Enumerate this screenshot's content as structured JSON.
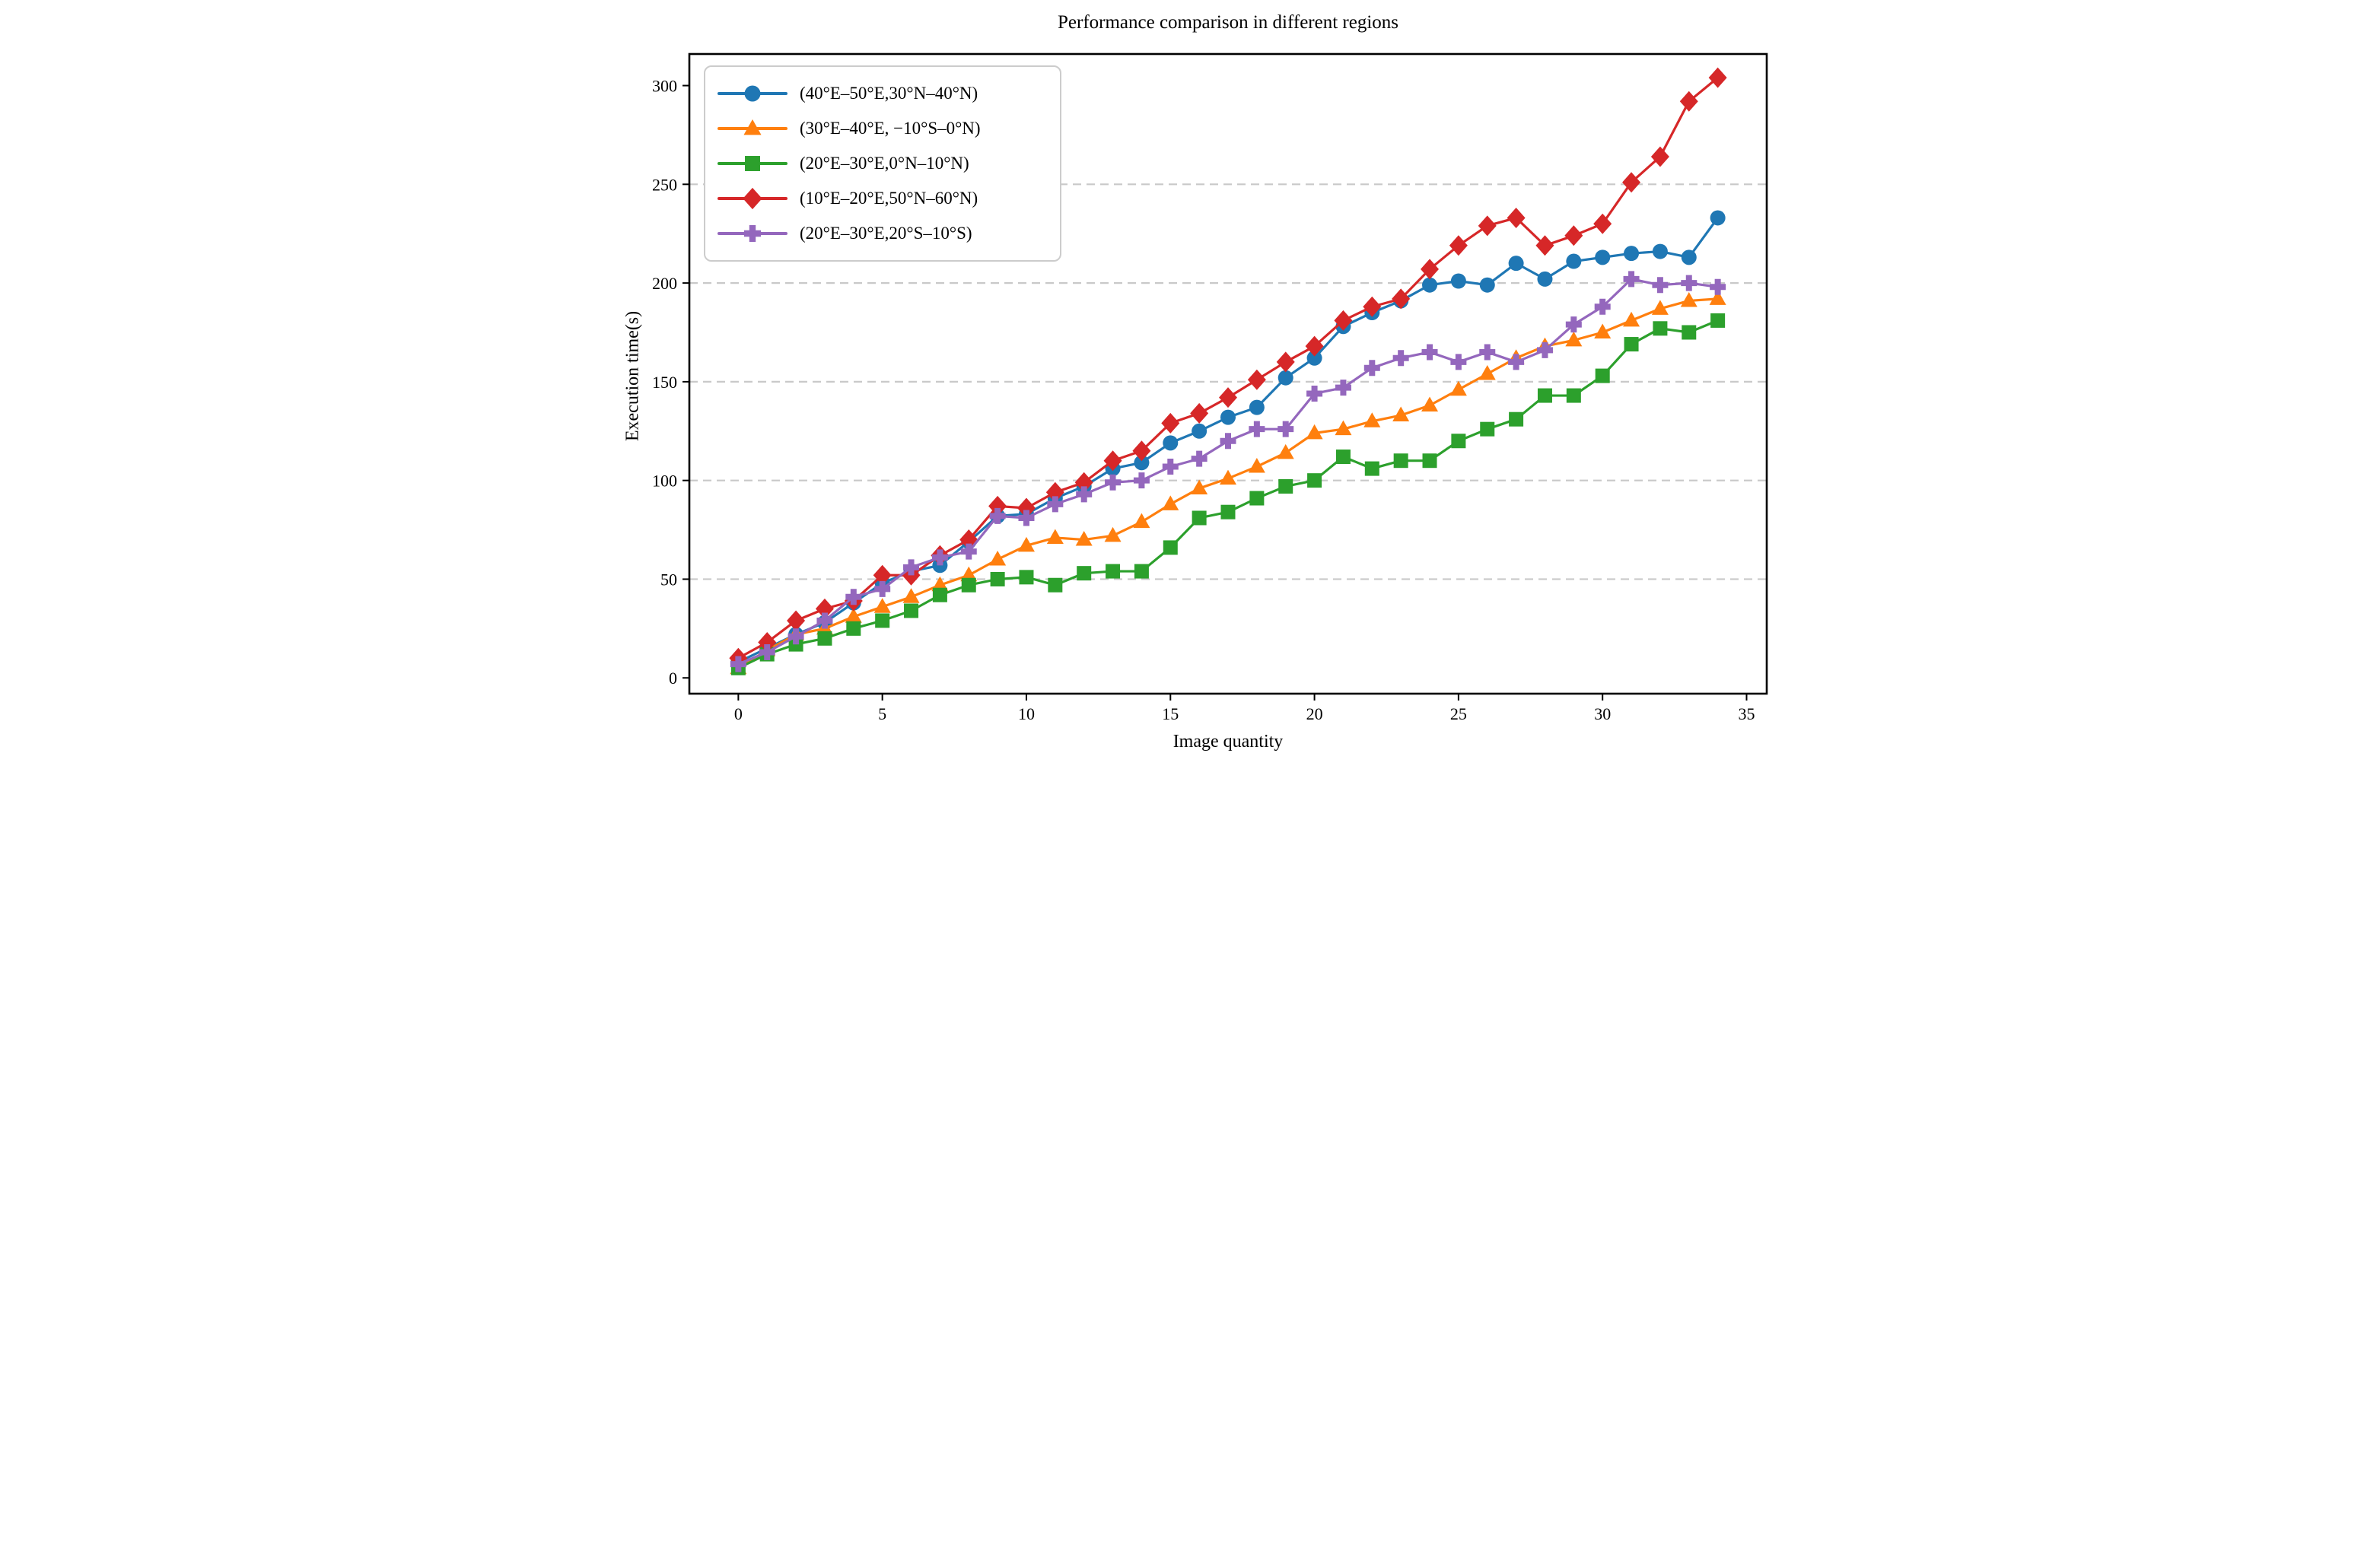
{
  "chart_data": {
    "type": "line",
    "title": "Performance comparison in different regions",
    "xlabel": "Image quantity",
    "ylabel": "Execution time(s)",
    "x": [
      0,
      1,
      2,
      3,
      4,
      5,
      6,
      7,
      8,
      9,
      10,
      11,
      12,
      13,
      14,
      15,
      16,
      17,
      18,
      19,
      20,
      21,
      22,
      23,
      24,
      25,
      26,
      27,
      28,
      29,
      30,
      31,
      32,
      33,
      34
    ],
    "xlim": [
      -1.7,
      35.7
    ],
    "ylim": [
      -8,
      316
    ],
    "xticks": [
      0,
      5,
      10,
      15,
      20,
      25,
      30,
      35
    ],
    "yticks": [
      0,
      50,
      100,
      150,
      200,
      250,
      300
    ],
    "grid": {
      "axis": "y",
      "values": [
        50,
        100,
        150,
        200,
        250
      ],
      "style": "dashed",
      "color": "#c9c9c9"
    },
    "legend_position": "upper left",
    "series": [
      {
        "name": "(40°E–50°E,30°N–40°N)",
        "color": "#1f77b4",
        "marker": "circle",
        "values": [
          8,
          15,
          22,
          28,
          38,
          48,
          54,
          57,
          69,
          82,
          83,
          91,
          97,
          106,
          109,
          119,
          125,
          132,
          137,
          152,
          162,
          178,
          185,
          191,
          199,
          201,
          199,
          210,
          202,
          211,
          213,
          215,
          216,
          213,
          233
        ]
      },
      {
        "name": "(30°E–40°E, −10°S–0°N)",
        "color": "#ff7f0e",
        "marker": "triangle",
        "values": [
          5,
          14,
          22,
          25,
          31,
          36,
          41,
          47,
          52,
          60,
          67,
          71,
          70,
          72,
          79,
          88,
          96,
          101,
          107,
          114,
          124,
          126,
          130,
          133,
          138,
          146,
          154,
          162,
          168,
          171,
          175,
          181,
          187,
          191,
          192
        ]
      },
      {
        "name": "(20°E–30°E,0°N–10°N)",
        "color": "#2ca02c",
        "marker": "square",
        "values": [
          5,
          12,
          17,
          20,
          25,
          29,
          34,
          42,
          47,
          50,
          51,
          47,
          53,
          54,
          54,
          66,
          81,
          84,
          91,
          97,
          100,
          112,
          106,
          110,
          110,
          120,
          126,
          131,
          143,
          143,
          153,
          169,
          177,
          175,
          181
        ]
      },
      {
        "name": "(10°E–20°E,50°N–60°N)",
        "color": "#d62728",
        "marker": "diamond",
        "values": [
          10,
          18,
          29,
          35,
          39,
          52,
          52,
          62,
          70,
          87,
          86,
          94,
          99,
          110,
          115,
          129,
          134,
          142,
          151,
          160,
          168,
          181,
          188,
          192,
          207,
          219,
          229,
          233,
          219,
          224,
          230,
          251,
          264,
          292,
          304
        ]
      },
      {
        "name": "(20°E–30°E,20°S–10°S)",
        "color": "#9467bd",
        "marker": "plus",
        "values": [
          7,
          13,
          21,
          29,
          41,
          45,
          56,
          61,
          64,
          82,
          81,
          88,
          93,
          99,
          100,
          107,
          111,
          120,
          126,
          126,
          144,
          147,
          157,
          162,
          165,
          160,
          165,
          160,
          166,
          179,
          188,
          202,
          199,
          200,
          198
        ]
      }
    ]
  }
}
